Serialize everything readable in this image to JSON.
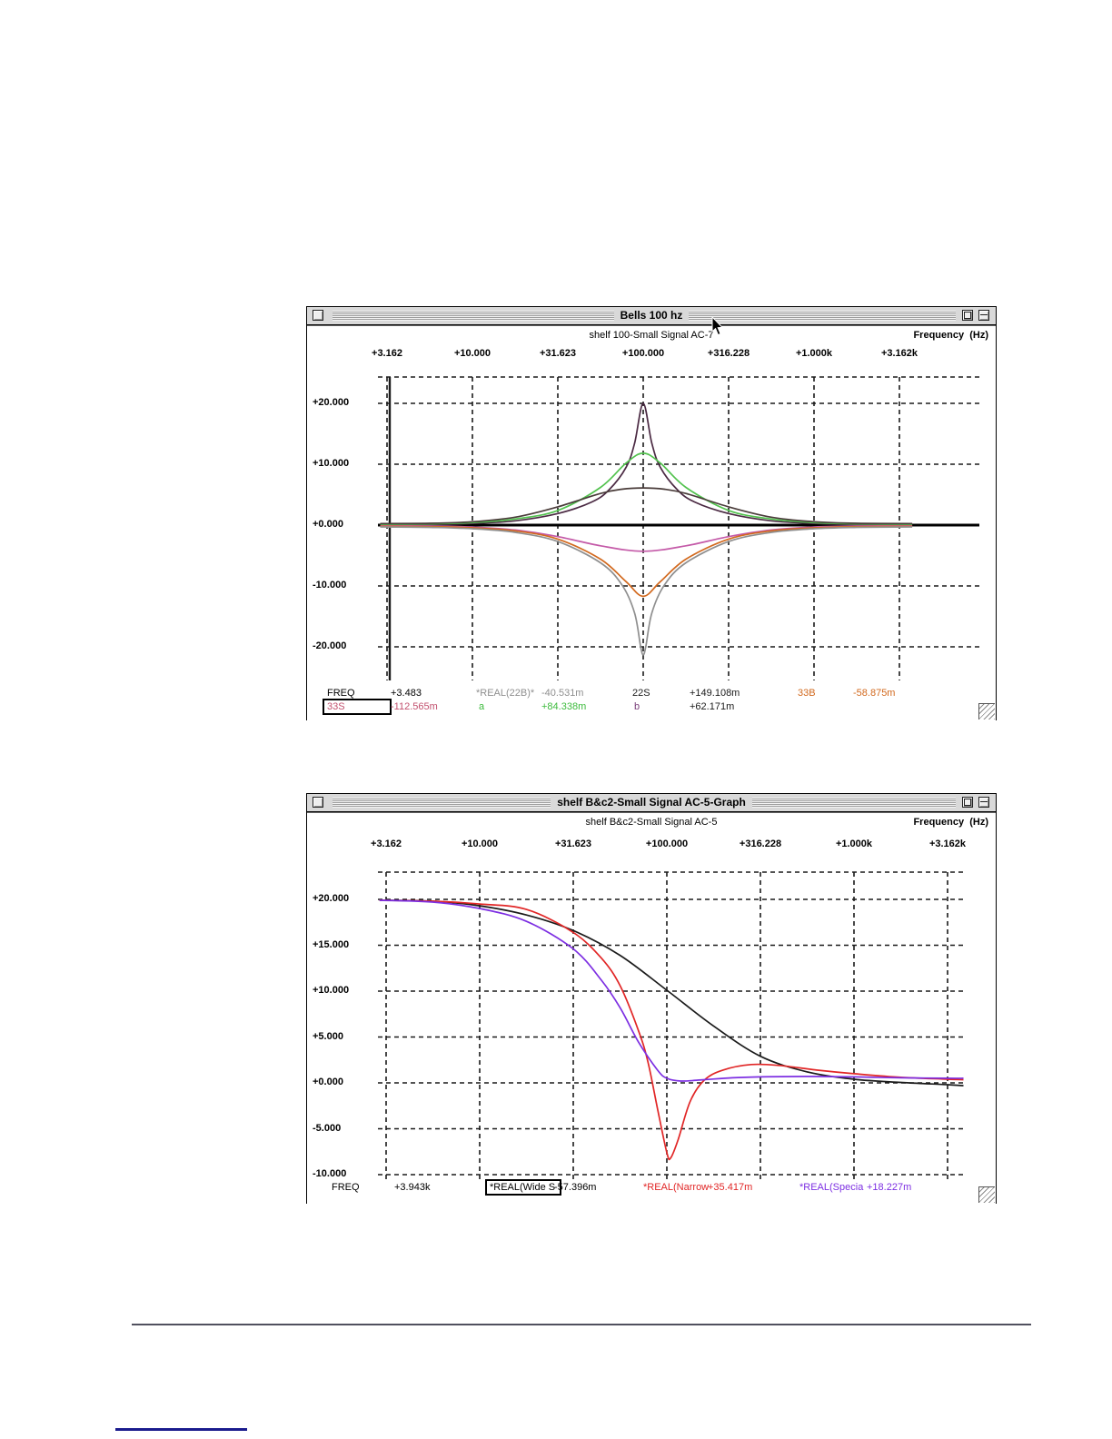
{
  "page": {
    "divider_color": "#50505e",
    "link_underline_color": "#1a1b8d"
  },
  "window1": {
    "title": "Bells 100 hz",
    "subtitle": "shelf 100-Small Signal AC-7",
    "freq_label": "Frequency",
    "freq_unit": "(Hz)",
    "status_row1": [
      {
        "text": "FREQ",
        "color": "#000000",
        "boxed": false
      },
      {
        "text": "+3.483",
        "color": "#000000",
        "boxed": false
      },
      {
        "text": "*REAL(22B)*",
        "color": "#8f8f8f",
        "boxed": false
      },
      {
        "text": "-40.531m",
        "color": "#8f8f8f",
        "boxed": false
      },
      {
        "text": "22S",
        "color": "#1a1a1a",
        "boxed": false
      },
      {
        "text": "+149.108m",
        "color": "#1a1a1a",
        "boxed": false
      },
      {
        "text": "33B",
        "color": "#d2691e",
        "boxed": false
      },
      {
        "text": "-58.875m",
        "color": "#d2691e",
        "boxed": false
      }
    ],
    "status_row2": [
      {
        "text": "33S",
        "color": "#c2506e",
        "boxed": true
      },
      {
        "text": "-112.565m",
        "color": "#c2506e",
        "boxed": false
      },
      {
        "text": "a",
        "color": "#3dbb3d",
        "boxed": false
      },
      {
        "text": "+84.338m",
        "color": "#3dbb3d",
        "boxed": false
      },
      {
        "text": "b",
        "color": "#7a3f7a",
        "boxed": false
      },
      {
        "text": "+62.171m",
        "color": "#1a1a1a",
        "boxed": false
      }
    ]
  },
  "window2": {
    "title": "shelf B&c2-Small Signal AC-5-Graph",
    "subtitle": "shelf B&c2-Small Signal AC-5",
    "freq_label": "Frequency",
    "freq_unit": "(Hz)",
    "status_row1": [
      {
        "text": "FREQ",
        "color": "#000000",
        "boxed": false
      },
      {
        "text": "+3.943k",
        "color": "#000000",
        "boxed": false
      },
      {
        "text": "*REAL(Wide S",
        "color": "#000000",
        "boxed": true
      },
      {
        "text": "-57.396m",
        "color": "#000000",
        "boxed": false
      },
      {
        "text": "*REAL(Narrow",
        "color": "#e12626",
        "boxed": false
      },
      {
        "text": "+35.417m",
        "color": "#e12626",
        "boxed": false
      },
      {
        "text": "*REAL(Specia",
        "color": "#7d2fe2",
        "boxed": false
      },
      {
        "text": "+18.227m",
        "color": "#7d2fe2",
        "boxed": false
      }
    ]
  },
  "chart_data": [
    {
      "type": "line",
      "title": "Bells 100 hz",
      "subtitle": "shelf 100-Small Signal AC-7",
      "xlabel": "Frequency (Hz)",
      "x_scale": "log",
      "x_tick_labels": [
        "+3.162",
        "+10.000",
        "+31.623",
        "+100.000",
        "+316.228",
        "+1.000k",
        "+3.162k"
      ],
      "x_ticks_hz": [
        3.162,
        10,
        31.623,
        100,
        316.228,
        1000,
        3162
      ],
      "y_tick_labels": [
        "+20.000",
        "+10.000",
        "+0.000",
        "-10.000",
        "-20.000"
      ],
      "y_ticks": [
        20,
        10,
        0,
        -10,
        -20
      ],
      "ylim": [
        -24,
        24
      ],
      "grid": true,
      "zero_axis_solid": true,
      "cursor_freq": 3.483,
      "x_is": "tick_index (0 = 3.162 Hz, +1 per half-decade)",
      "series": [
        {
          "name": "22S",
          "color": "#4b2a43",
          "peak_db": 20,
          "center_hz": 100,
          "points": [
            [
              -0.08,
              0.1
            ],
            [
              0.5,
              0.12
            ],
            [
              1,
              0.28
            ],
            [
              1.5,
              0.7
            ],
            [
              2,
              1.9
            ],
            [
              2.4,
              3.8
            ],
            [
              2.6,
              5.8
            ],
            [
              2.8,
              9.5
            ],
            [
              2.9,
              13.5
            ],
            [
              3,
              20
            ],
            [
              3.1,
              13.5
            ],
            [
              3.2,
              9.5
            ],
            [
              3.4,
              5.8
            ],
            [
              3.6,
              3.8
            ],
            [
              4,
              1.9
            ],
            [
              4.5,
              0.7
            ],
            [
              5,
              0.28
            ],
            [
              5.5,
              0.12
            ],
            [
              6.15,
              0.1
            ]
          ]
        },
        {
          "name": "a",
          "color": "#52c24e",
          "peak_db": 11.8,
          "center_hz": 100,
          "points": [
            [
              -0.08,
              0.15
            ],
            [
              0.5,
              0.2
            ],
            [
              1,
              0.4
            ],
            [
              1.5,
              1.0
            ],
            [
              2,
              2.4
            ],
            [
              2.5,
              6.2
            ],
            [
              2.8,
              10.2
            ],
            [
              3,
              11.8
            ],
            [
              3.2,
              10.2
            ],
            [
              3.5,
              6.2
            ],
            [
              4,
              2.4
            ],
            [
              4.5,
              1.0
            ],
            [
              5,
              0.4
            ],
            [
              5.5,
              0.2
            ],
            [
              6.15,
              0.15
            ]
          ]
        },
        {
          "name": "b",
          "color": "#4a3c3a",
          "peak_db": 6.1,
          "center_hz": 100,
          "points": [
            [
              -0.08,
              0.25
            ],
            [
              0.5,
              0.3
            ],
            [
              1,
              0.55
            ],
            [
              1.5,
              1.3
            ],
            [
              2,
              3.0
            ],
            [
              2.5,
              5.2
            ],
            [
              2.75,
              5.9
            ],
            [
              3,
              6.1
            ],
            [
              3.25,
              5.9
            ],
            [
              3.5,
              5.2
            ],
            [
              4,
              3.0
            ],
            [
              4.5,
              1.3
            ],
            [
              5,
              0.55
            ],
            [
              5.5,
              0.3
            ],
            [
              6.15,
              0.25
            ]
          ]
        },
        {
          "name": "33S",
          "color": "#c45aa8",
          "peak_db": -4.3,
          "center_hz": 100,
          "points": [
            [
              -0.08,
              -0.12
            ],
            [
              0.5,
              -0.15
            ],
            [
              1,
              -0.32
            ],
            [
              1.5,
              -0.8
            ],
            [
              2,
              -1.9
            ],
            [
              2.5,
              -3.4
            ],
            [
              3,
              -4.3
            ],
            [
              3.5,
              -3.4
            ],
            [
              4,
              -1.9
            ],
            [
              4.5,
              -0.8
            ],
            [
              5,
              -0.32
            ],
            [
              5.5,
              -0.15
            ],
            [
              6.15,
              -0.12
            ]
          ]
        },
        {
          "name": "33B",
          "color": "#d2691e",
          "peak_db": -11.7,
          "center_hz": 100,
          "points": [
            [
              -0.08,
              -0.2
            ],
            [
              0.5,
              -0.25
            ],
            [
              1,
              -0.45
            ],
            [
              1.5,
              -0.95
            ],
            [
              2,
              -2.3
            ],
            [
              2.5,
              -5.6
            ],
            [
              2.8,
              -9.3
            ],
            [
              3,
              -11.7
            ],
            [
              3.2,
              -9.3
            ],
            [
              3.5,
              -5.6
            ],
            [
              4,
              -2.3
            ],
            [
              4.5,
              -0.95
            ],
            [
              5,
              -0.45
            ],
            [
              5.5,
              -0.25
            ],
            [
              6.15,
              -0.2
            ]
          ]
        },
        {
          "name": "22B",
          "color": "#8f8f8f",
          "peak_db": -21.3,
          "center_hz": 100,
          "points": [
            [
              -0.08,
              -0.3
            ],
            [
              0.5,
              -0.38
            ],
            [
              1,
              -0.6
            ],
            [
              1.5,
              -1.2
            ],
            [
              2,
              -2.7
            ],
            [
              2.5,
              -6.2
            ],
            [
              2.75,
              -9.8
            ],
            [
              2.9,
              -14.5
            ],
            [
              2.97,
              -20
            ],
            [
              3,
              -21.3
            ],
            [
              3.03,
              -20
            ],
            [
              3.1,
              -14.5
            ],
            [
              3.25,
              -9.8
            ],
            [
              3.5,
              -6.2
            ],
            [
              4,
              -2.7
            ],
            [
              4.5,
              -1.2
            ],
            [
              5,
              -0.6
            ],
            [
              5.5,
              -0.38
            ],
            [
              6.15,
              -0.3
            ]
          ]
        }
      ],
      "readout": {
        "freq": "+3.483",
        "values": {
          "22B": "-40.531m",
          "22S": "+149.108m",
          "33B": "-58.875m",
          "33S": "-112.565m",
          "a": "+84.338m",
          "b": "+62.171m"
        }
      }
    },
    {
      "type": "line",
      "title": "shelf B&c2-Small Signal AC-5-Graph",
      "subtitle": "shelf B&c2-Small Signal AC-5",
      "xlabel": "Frequency (Hz)",
      "x_scale": "log",
      "x_tick_labels": [
        "+3.162",
        "+10.000",
        "+31.623",
        "+100.000",
        "+316.228",
        "+1.000k",
        "+3.162k"
      ],
      "x_ticks_hz": [
        3.162,
        10,
        31.623,
        100,
        316.228,
        1000,
        3162
      ],
      "y_tick_labels": [
        "+20.000",
        "+15.000",
        "+10.000",
        "+5.000",
        "+0.000",
        "-5.000",
        "-10.000"
      ],
      "y_ticks": [
        20,
        15,
        10,
        5,
        0,
        -5,
        -10
      ],
      "ylim": [
        -13,
        23
      ],
      "grid": true,
      "zero_axis_solid": false,
      "x_is": "tick_index (0 = 3.162 Hz, +1 per half-decade)",
      "series": [
        {
          "name": "Wide S",
          "color": "#1b1b1b",
          "points": [
            [
              -0.07,
              19.9
            ],
            [
              0.5,
              19.8
            ],
            [
              1,
              19.3
            ],
            [
              1.5,
              18.3
            ],
            [
              2,
              16.6
            ],
            [
              2.5,
              13.9
            ],
            [
              3,
              10.1
            ],
            [
              3.5,
              6.2
            ],
            [
              4,
              2.9
            ],
            [
              4.5,
              1.2
            ],
            [
              5,
              0.4
            ],
            [
              5.5,
              0.05
            ],
            [
              6,
              -0.2
            ],
            [
              6.17,
              -0.3
            ]
          ]
        },
        {
          "name": "Narrow",
          "color": "#e12626",
          "points": [
            [
              -0.07,
              19.9
            ],
            [
              0.5,
              19.8
            ],
            [
              1,
              19.5
            ],
            [
              1.5,
              18.9
            ],
            [
              2,
              16.4
            ],
            [
              2.3,
              13.6
            ],
            [
              2.5,
              10.6
            ],
            [
              2.7,
              5.6
            ],
            [
              2.8,
              2.2
            ],
            [
              2.9,
              -2.8
            ],
            [
              3.0,
              -7.6
            ],
            [
              3.04,
              -8.2
            ],
            [
              3.12,
              -6.2
            ],
            [
              3.25,
              -2.0
            ],
            [
              3.4,
              0.3
            ],
            [
              3.6,
              1.4
            ],
            [
              3.9,
              2.0
            ],
            [
              4.2,
              1.9
            ],
            [
              4.6,
              1.4
            ],
            [
              5,
              1.0
            ],
            [
              5.5,
              0.6
            ],
            [
              6,
              0.4
            ],
            [
              6.17,
              0.35
            ]
          ]
        },
        {
          "name": "Specia",
          "color": "#7d2fe2",
          "points": [
            [
              -0.07,
              19.9
            ],
            [
              0.5,
              19.7
            ],
            [
              1,
              19.0
            ],
            [
              1.5,
              17.6
            ],
            [
              2,
              14.6
            ],
            [
              2.3,
              11.2
            ],
            [
              2.5,
              8.2
            ],
            [
              2.7,
              4.4
            ],
            [
              2.9,
              1.4
            ],
            [
              3.0,
              0.5
            ],
            [
              3.15,
              0.2
            ],
            [
              3.4,
              0.35
            ],
            [
              3.7,
              0.55
            ],
            [
              4,
              0.65
            ],
            [
              4.5,
              0.7
            ],
            [
              5,
              0.65
            ],
            [
              5.5,
              0.55
            ],
            [
              6,
              0.5
            ],
            [
              6.17,
              0.5
            ]
          ]
        }
      ],
      "readout": {
        "freq": "+3.943k",
        "values": {
          "Wide S": "-57.396m",
          "Narrow": "+35.417m",
          "Specia": "+18.227m"
        }
      }
    }
  ]
}
